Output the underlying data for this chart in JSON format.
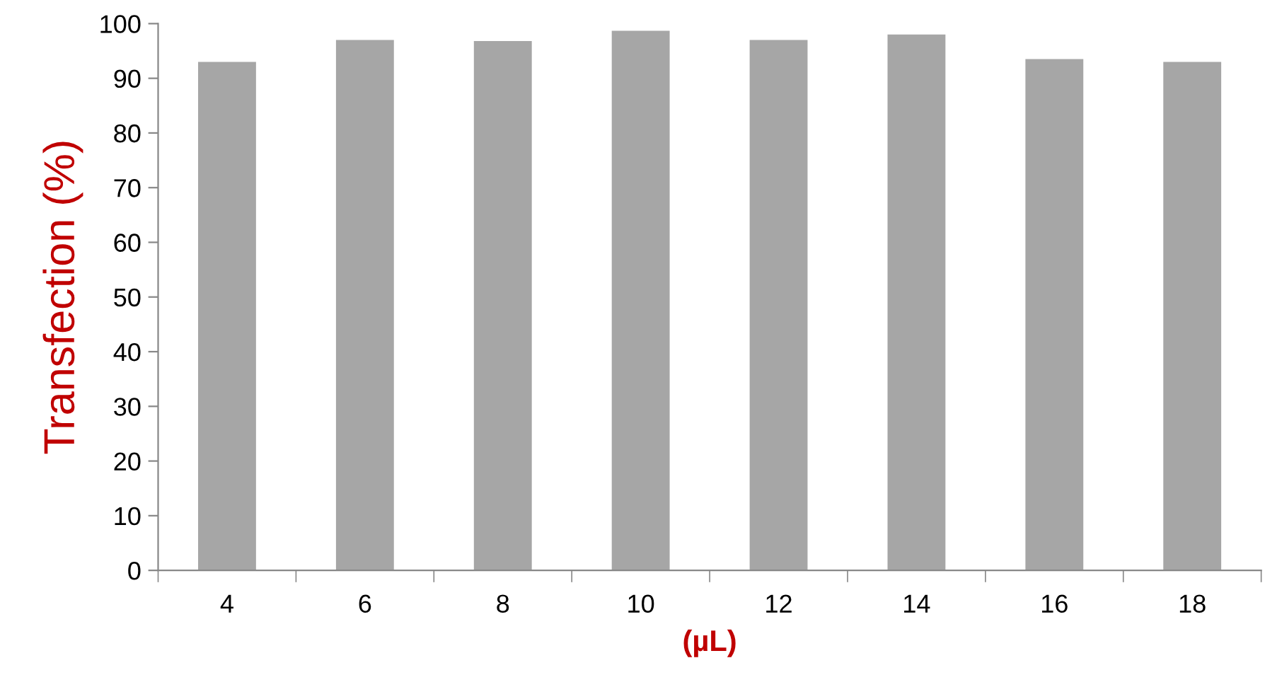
{
  "chart_data": {
    "type": "bar",
    "xlabel": "(µL)",
    "ylabel": "Transfection (%)",
    "categories": [
      "4",
      "6",
      "8",
      "10",
      "12",
      "14",
      "16",
      "18"
    ],
    "values": [
      93,
      97,
      96.8,
      98.7,
      97,
      98,
      93.5,
      93
    ],
    "color": "#a6a6a6",
    "ylim": [
      0,
      100
    ],
    "yticks": [
      0,
      10,
      20,
      30,
      40,
      50,
      60,
      70,
      80,
      90,
      100
    ],
    "grid": false,
    "legend": false
  }
}
